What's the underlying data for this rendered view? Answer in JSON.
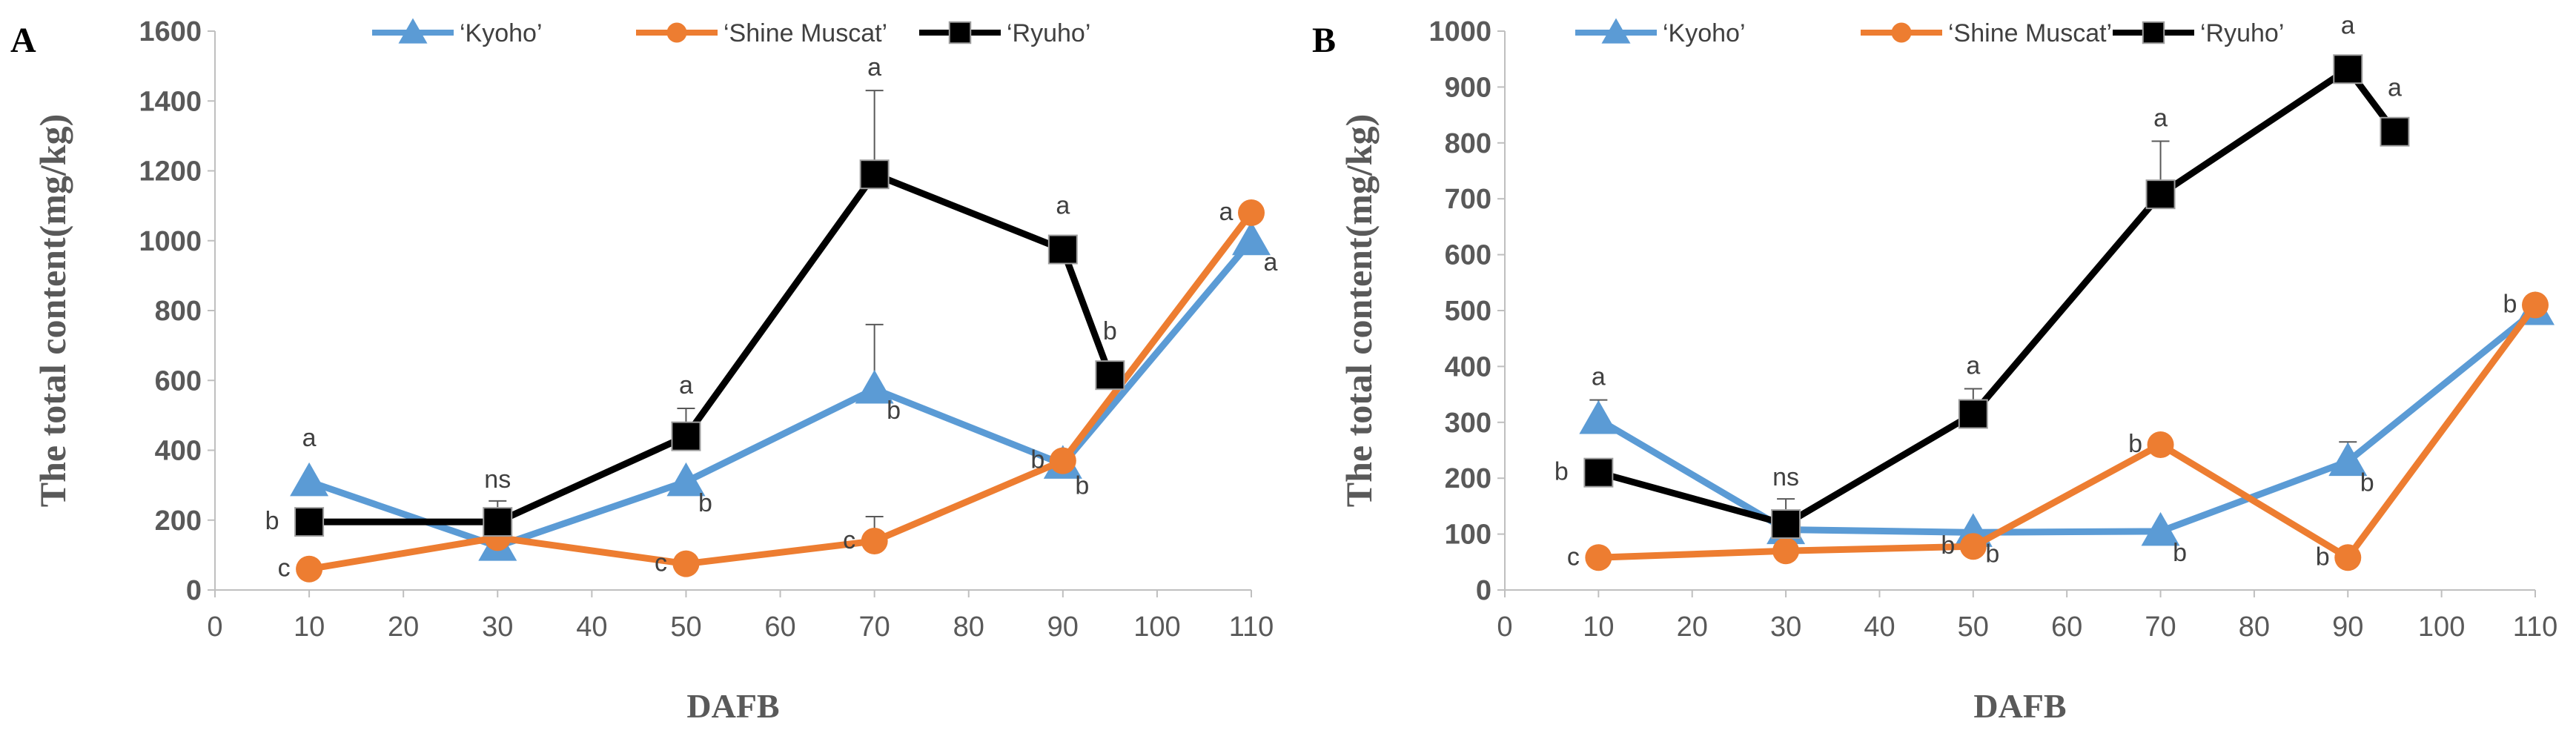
{
  "chart_data": [
    {
      "panel_label": "A",
      "type": "line",
      "xlabel": "DAFB",
      "ylabel": "The total content(mg/kg)",
      "xlim": [
        0,
        110
      ],
      "ylim": [
        0,
        1600
      ],
      "xticks": [
        0,
        10,
        20,
        30,
        40,
        50,
        60,
        70,
        80,
        90,
        100,
        110
      ],
      "yticks": [
        0,
        200,
        400,
        600,
        800,
        1000,
        1200,
        1400,
        1600
      ],
      "grid": false,
      "legend_position": "top",
      "series": [
        {
          "name": "‘Kyoho’",
          "color": "#5B9BD5",
          "marker": "triangle",
          "points": [
            {
              "x": 10,
              "y": 310,
              "err": 0,
              "label": "a"
            },
            {
              "x": 30,
              "y": 125,
              "err": 0,
              "label": ""
            },
            {
              "x": 50,
              "y": 310,
              "err": 0,
              "label": "b"
            },
            {
              "x": 70,
              "y": 575,
              "err": 185,
              "label": "b"
            },
            {
              "x": 90,
              "y": 360,
              "err": 0,
              "label": "b"
            },
            {
              "x": 110,
              "y": 1000,
              "err": 0,
              "label": "a"
            }
          ]
        },
        {
          "name": "‘Shine Muscat’",
          "color": "#ED7D31",
          "marker": "circle",
          "points": [
            {
              "x": 10,
              "y": 60,
              "err": 0,
              "label": "c"
            },
            {
              "x": 30,
              "y": 150,
              "err": 0,
              "label": ""
            },
            {
              "x": 50,
              "y": 75,
              "err": 0,
              "label": "c"
            },
            {
              "x": 70,
              "y": 140,
              "err": 70,
              "label": "c"
            },
            {
              "x": 90,
              "y": 370,
              "err": 0,
              "label": "b"
            },
            {
              "x": 110,
              "y": 1080,
              "err": 0,
              "label": "a"
            }
          ]
        },
        {
          "name": "‘Ryuho’",
          "color": "#000000",
          "marker": "square",
          "points": [
            {
              "x": 10,
              "y": 195,
              "err": 0,
              "label": "b"
            },
            {
              "x": 30,
              "y": 195,
              "err": 60,
              "label": "ns"
            },
            {
              "x": 50,
              "y": 440,
              "err": 80,
              "label": "a"
            },
            {
              "x": 70,
              "y": 1190,
              "err": 240,
              "label": "a"
            },
            {
              "x": 90,
              "y": 975,
              "err": 0,
              "label": "a"
            },
            {
              "x": 95,
              "y": 615,
              "err": 0,
              "label": "b"
            }
          ]
        }
      ]
    },
    {
      "panel_label": "B",
      "type": "line",
      "xlabel": "DAFB",
      "ylabel": "The total content(mg/kg)",
      "xlim": [
        0,
        110
      ],
      "ylim": [
        0,
        1000
      ],
      "xticks": [
        0,
        10,
        20,
        30,
        40,
        50,
        60,
        70,
        80,
        90,
        100,
        110
      ],
      "yticks": [
        0,
        100,
        200,
        300,
        400,
        500,
        600,
        700,
        800,
        900,
        1000
      ],
      "grid": false,
      "legend_position": "top",
      "series": [
        {
          "name": "‘Kyoho’",
          "color": "#5B9BD5",
          "marker": "triangle",
          "points": [
            {
              "x": 10,
              "y": 305,
              "err": 35,
              "label": "a"
            },
            {
              "x": 30,
              "y": 108,
              "err": 0,
              "label": ""
            },
            {
              "x": 50,
              "y": 103,
              "err": 0,
              "label": "b"
            },
            {
              "x": 70,
              "y": 105,
              "err": 0,
              "label": "b"
            },
            {
              "x": 90,
              "y": 230,
              "err": 35,
              "label": "b"
            },
            {
              "x": 110,
              "y": 500,
              "err": 0,
              "label": ""
            }
          ]
        },
        {
          "name": "‘Shine Muscat’",
          "color": "#ED7D31",
          "marker": "circle",
          "points": [
            {
              "x": 10,
              "y": 58,
              "err": 0,
              "label": "c"
            },
            {
              "x": 30,
              "y": 70,
              "err": 0,
              "label": ""
            },
            {
              "x": 50,
              "y": 78,
              "err": 0,
              "label": "b"
            },
            {
              "x": 70,
              "y": 260,
              "err": 0,
              "label": "b"
            },
            {
              "x": 90,
              "y": 58,
              "err": 0,
              "label": "b"
            },
            {
              "x": 110,
              "y": 510,
              "err": 0,
              "label": "b"
            }
          ]
        },
        {
          "name": "‘Ryuho’",
          "color": "#000000",
          "marker": "square",
          "points": [
            {
              "x": 10,
              "y": 210,
              "err": 0,
              "label": "b"
            },
            {
              "x": 30,
              "y": 118,
              "err": 45,
              "label": "ns"
            },
            {
              "x": 50,
              "y": 315,
              "err": 45,
              "label": "a"
            },
            {
              "x": 70,
              "y": 708,
              "err": 95,
              "label": "a"
            },
            {
              "x": 90,
              "y": 932,
              "err": 0,
              "label": "a"
            },
            {
              "x": 95,
              "y": 820,
              "err": 0,
              "label": "a"
            }
          ]
        }
      ]
    }
  ]
}
